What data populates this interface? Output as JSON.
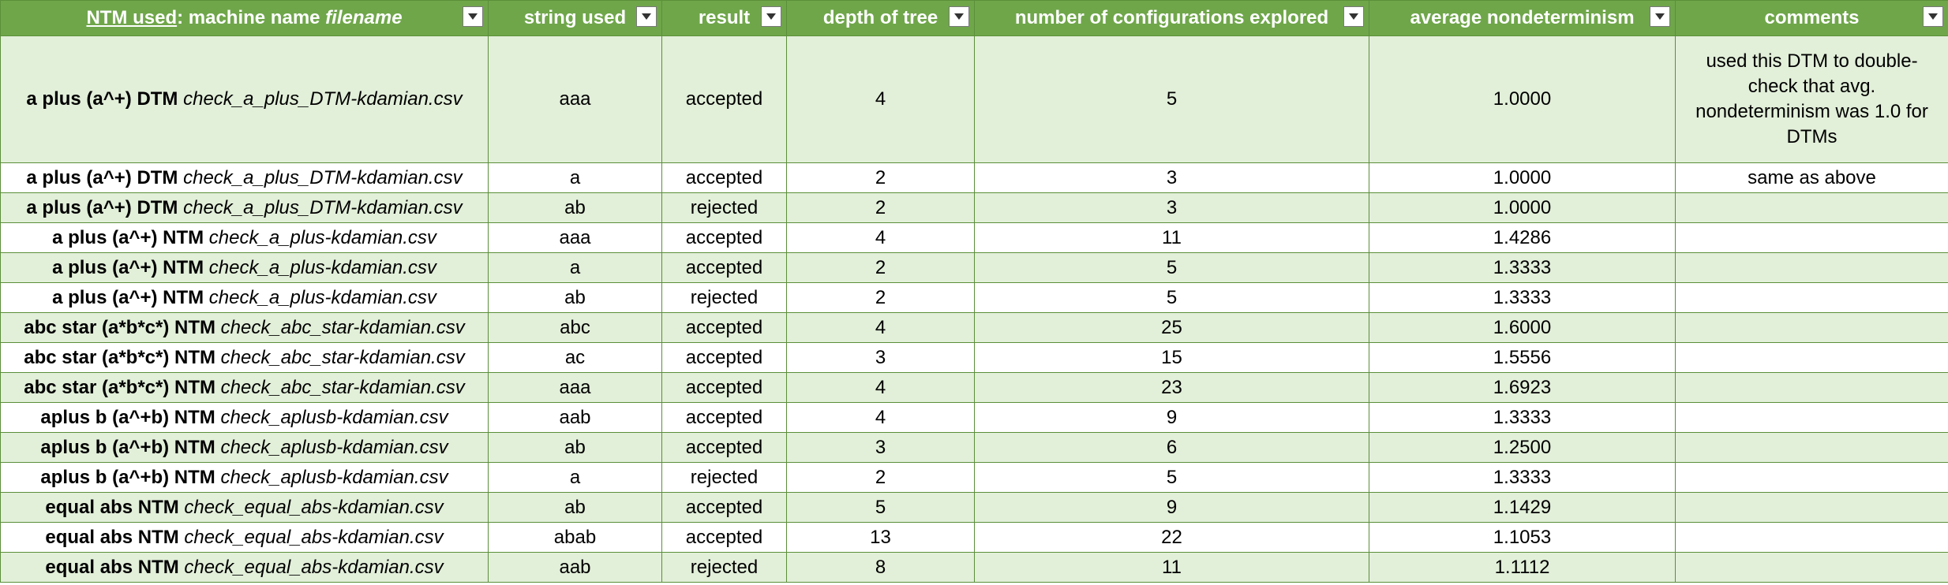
{
  "header": {
    "col1_part1": "NTM used",
    "col1_part2": ": machine name ",
    "col1_part3": "filename",
    "col2": "string used",
    "col3": "result",
    "col4": "depth of tree",
    "col5": "number of configurations explored",
    "col6": "average nondeterminism",
    "col7": "comments"
  },
  "colors": {
    "header_bg": "#6fa64a",
    "band_green": "#e2efd9",
    "band_white": "#ffffff",
    "grid": "#5b8f3a"
  },
  "rows": [
    {
      "machine": "a plus (a^+) DTM",
      "file": "check_a_plus_DTM-kdamian.csv",
      "string": "aaa",
      "result": "accepted",
      "depth": "4",
      "configs": "5",
      "avg": "1.0000",
      "comment": "used this DTM to double-check that avg. nondeterminism was 1.0 for DTMs"
    },
    {
      "machine": "a plus (a^+) DTM",
      "file": "check_a_plus_DTM-kdamian.csv",
      "string": "a",
      "result": "accepted",
      "depth": "2",
      "configs": "3",
      "avg": "1.0000",
      "comment": "same as above"
    },
    {
      "machine": "a plus (a^+) DTM",
      "file": "check_a_plus_DTM-kdamian.csv",
      "string": "ab",
      "result": "rejected",
      "depth": "2",
      "configs": "3",
      "avg": "1.0000",
      "comment": ""
    },
    {
      "machine": "a plus (a^+) NTM",
      "file": "check_a_plus-kdamian.csv",
      "string": "aaa",
      "result": "accepted",
      "depth": "4",
      "configs": "11",
      "avg": "1.4286",
      "comment": ""
    },
    {
      "machine": "a plus (a^+) NTM",
      "file": "check_a_plus-kdamian.csv",
      "string": "a",
      "result": "accepted",
      "depth": "2",
      "configs": "5",
      "avg": "1.3333",
      "comment": ""
    },
    {
      "machine": "a plus (a^+) NTM",
      "file": "check_a_plus-kdamian.csv",
      "string": "ab",
      "result": "rejected",
      "depth": "2",
      "configs": "5",
      "avg": "1.3333",
      "comment": ""
    },
    {
      "machine": "abc star (a*b*c*) NTM",
      "file": "check_abc_star-kdamian.csv",
      "string": "abc",
      "result": "accepted",
      "depth": "4",
      "configs": "25",
      "avg": "1.6000",
      "comment": ""
    },
    {
      "machine": "abc star (a*b*c*) NTM",
      "file": "check_abc_star-kdamian.csv",
      "string": "ac",
      "result": "accepted",
      "depth": "3",
      "configs": "15",
      "avg": "1.5556",
      "comment": ""
    },
    {
      "machine": "abc star (a*b*c*) NTM",
      "file": "check_abc_star-kdamian.csv",
      "string": "aaa",
      "result": "accepted",
      "depth": "4",
      "configs": "23",
      "avg": "1.6923",
      "comment": ""
    },
    {
      "machine": "aplus b (a^+b) NTM",
      "file": "check_aplusb-kdamian.csv",
      "string": "aab",
      "result": "accepted",
      "depth": "4",
      "configs": "9",
      "avg": "1.3333",
      "comment": ""
    },
    {
      "machine": "aplus b (a^+b) NTM",
      "file": "check_aplusb-kdamian.csv",
      "string": "ab",
      "result": "accepted",
      "depth": "3",
      "configs": "6",
      "avg": "1.2500",
      "comment": ""
    },
    {
      "machine": "aplus b (a^+b) NTM",
      "file": "check_aplusb-kdamian.csv",
      "string": "a",
      "result": "rejected",
      "depth": "2",
      "configs": "5",
      "avg": "1.3333",
      "comment": ""
    },
    {
      "machine": "equal abs NTM",
      "file": "check_equal_abs-kdamian.csv",
      "string": "ab",
      "result": "accepted",
      "depth": "5",
      "configs": "9",
      "avg": "1.1429",
      "comment": ""
    },
    {
      "machine": "equal abs NTM",
      "file": "check_equal_abs-kdamian.csv",
      "string": "abab",
      "result": "accepted",
      "depth": "13",
      "configs": "22",
      "avg": "1.1053",
      "comment": ""
    },
    {
      "machine": "equal abs NTM",
      "file": "check_equal_abs-kdamian.csv",
      "string": "aab",
      "result": "rejected",
      "depth": "8",
      "configs": "11",
      "avg": "1.1112",
      "comment": ""
    }
  ]
}
